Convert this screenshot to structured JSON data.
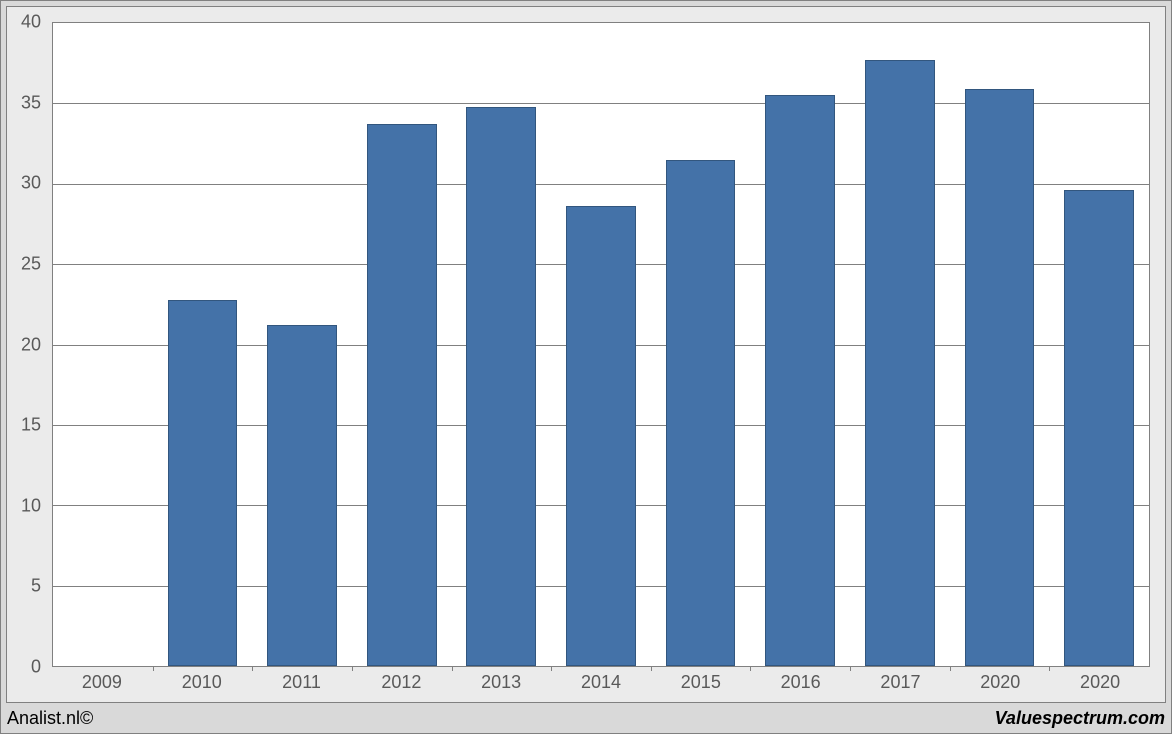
{
  "chart": {
    "type": "bar",
    "categories": [
      "2009",
      "2010",
      "2011",
      "2012",
      "2013",
      "2014",
      "2015",
      "2016",
      "2017",
      "2020",
      "2020"
    ],
    "values": [
      0,
      22.8,
      21.2,
      33.7,
      34.8,
      28.6,
      31.5,
      35.5,
      37.7,
      35.9,
      29.6
    ],
    "bar_fill": "#4472a8",
    "bar_border": "#32567e",
    "plot_bg": "#ffffff",
    "panel_bg": "#ebebeb",
    "frame_bg": "#d9d9d9",
    "grid_color": "#808080",
    "y_min": 0,
    "y_max": 40,
    "y_step": 5,
    "bar_width_ratio": 0.7,
    "label_fontsize": 18,
    "label_color": "#595959"
  },
  "footer": {
    "left": "Analist.nl©",
    "right": "Valuespectrum.com"
  }
}
